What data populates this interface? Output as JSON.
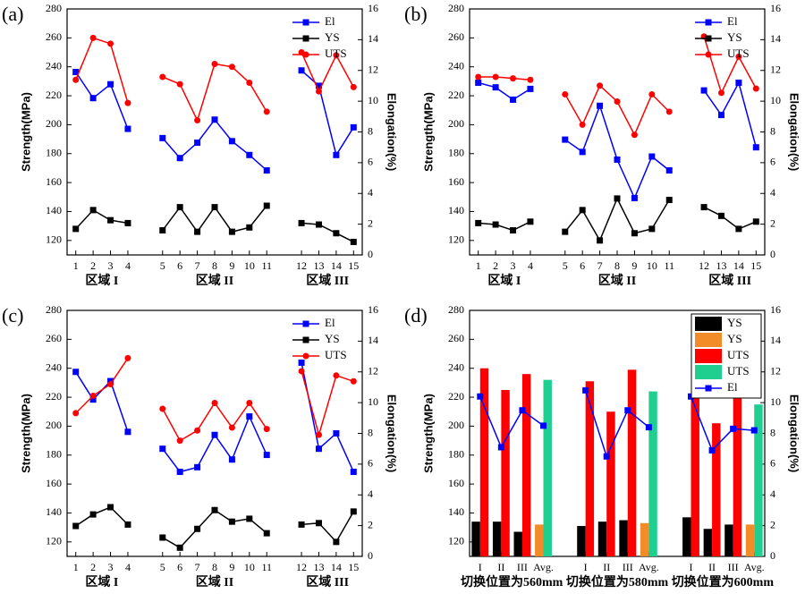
{
  "chart_data": [
    {
      "type": "line",
      "panel_label": "(a)",
      "ylabel": "Strength(MPa)",
      "y2label": "Elongation(%)",
      "categories": [
        "1",
        "2",
        "3",
        "4",
        null,
        "5",
        "6",
        "7",
        "8",
        "9",
        "10",
        "11",
        null,
        "12",
        "13",
        "14",
        "15"
      ],
      "group_labels": [
        "区域 I",
        "区域 II",
        "区域 III"
      ],
      "ylim": [
        110,
        280
      ],
      "yticks": [
        120,
        140,
        160,
        180,
        200,
        220,
        240,
        260,
        280
      ],
      "y2lim": [
        0,
        16
      ],
      "y2ticks": [
        0,
        2,
        4,
        6,
        8,
        10,
        12,
        14,
        16
      ],
      "legend": "upper right",
      "series": [
        {
          "name": "El",
          "color": "#0000ff",
          "marker": "square",
          "axis": "y2",
          "values": [
            11.9,
            10.2,
            11.1,
            8.2,
            null,
            7.6,
            6.3,
            7.3,
            8.8,
            7.4,
            6.5,
            5.5,
            null,
            12.0,
            11.0,
            6.5,
            8.3
          ]
        },
        {
          "name": "YS",
          "color": "#000000",
          "marker": "square",
          "values": [
            128,
            141,
            134,
            132,
            null,
            127,
            143,
            126,
            143,
            126,
            129,
            144,
            null,
            132,
            131,
            125,
            119
          ]
        },
        {
          "name": "UTS",
          "color": "#ff0000",
          "marker": "circle",
          "values": [
            231,
            260,
            256,
            215,
            null,
            233,
            228,
            203,
            242,
            240,
            229,
            209,
            null,
            250,
            223,
            248,
            226
          ]
        }
      ]
    },
    {
      "type": "line",
      "panel_label": "(b)",
      "ylabel": "Strength(MPa)",
      "y2label": "Elongation(%)",
      "categories": [
        "1",
        "2",
        "3",
        "4",
        null,
        "5",
        "6",
        "7",
        "8",
        "9",
        "10",
        "11",
        null,
        "12",
        "13",
        "14",
        "15"
      ],
      "group_labels": [
        "区域 I",
        "区域 II",
        "区域 III"
      ],
      "ylim": [
        110,
        280
      ],
      "yticks": [
        120,
        140,
        160,
        180,
        200,
        220,
        240,
        260,
        280
      ],
      "y2lim": [
        0,
        16
      ],
      "y2ticks": [
        0,
        2,
        4,
        6,
        8,
        10,
        12,
        14,
        16
      ],
      "legend": "upper right",
      "series": [
        {
          "name": "El",
          "color": "#0000ff",
          "marker": "square",
          "axis": "y2",
          "values": [
            11.2,
            10.9,
            10.1,
            10.8,
            null,
            7.5,
            6.7,
            9.7,
            6.2,
            3.7,
            6.4,
            5.5,
            null,
            10.7,
            9.1,
            11.2,
            7.0
          ]
        },
        {
          "name": "YS",
          "color": "#000000",
          "marker": "square",
          "values": [
            132,
            131,
            127,
            133,
            null,
            126,
            141,
            120,
            149,
            125,
            128,
            148,
            null,
            143,
            137,
            128,
            133
          ]
        },
        {
          "name": "UTS",
          "color": "#ff0000",
          "marker": "circle",
          "values": [
            233,
            233,
            232,
            231,
            null,
            221,
            200,
            227,
            216,
            193,
            221,
            209,
            null,
            261,
            222,
            247,
            225
          ]
        }
      ]
    },
    {
      "type": "line",
      "panel_label": "(c)",
      "ylabel": "Strength(MPa)",
      "y2label": "Elongation(%)",
      "categories": [
        "1",
        "2",
        "3",
        "4",
        null,
        "5",
        "6",
        "7",
        "8",
        "9",
        "10",
        "11",
        null,
        "12",
        "13",
        "14",
        "15"
      ],
      "group_labels": [
        "区域 I",
        "区域 II",
        "区域 III"
      ],
      "ylim": [
        110,
        280
      ],
      "yticks": [
        120,
        140,
        160,
        180,
        200,
        220,
        240,
        260,
        280
      ],
      "y2lim": [
        0,
        16
      ],
      "y2ticks": [
        0,
        2,
        4,
        6,
        8,
        10,
        12,
        14,
        16
      ],
      "legend": "upper right",
      "series": [
        {
          "name": "El",
          "color": "#0000ff",
          "marker": "square",
          "axis": "y2",
          "values": [
            12.0,
            10.2,
            11.4,
            8.1,
            null,
            7.0,
            5.5,
            5.8,
            7.9,
            6.3,
            9.1,
            6.6,
            null,
            12.6,
            7.0,
            8.0,
            5.5
          ]
        },
        {
          "name": "YS",
          "color": "#000000",
          "marker": "square",
          "values": [
            131,
            139,
            144,
            132,
            null,
            123,
            116,
            129,
            142,
            134,
            136,
            126,
            null,
            132,
            133,
            120,
            141
          ]
        },
        {
          "name": "UTS",
          "color": "#ff0000",
          "marker": "circle",
          "values": [
            209,
            221,
            229,
            247,
            null,
            212,
            190,
            197,
            216,
            199,
            216,
            198,
            null,
            238,
            194,
            235,
            231
          ]
        }
      ]
    },
    {
      "type": "bar",
      "panel_label": "(d)",
      "ylabel": "Strength(MPa)",
      "y2label": "Elongation(%)",
      "categories": [
        "I",
        "II",
        "III",
        "Avg.",
        null,
        "I",
        "II",
        "III",
        "Avg.",
        null,
        "I",
        "II",
        "III",
        "Avg."
      ],
      "group_labels": [
        "切换位置为560mm",
        "切换位置为580mm",
        "切换位置为600mm"
      ],
      "ylim": [
        110,
        280
      ],
      "yticks": [
        120,
        140,
        160,
        180,
        200,
        220,
        240,
        260,
        280
      ],
      "y2lim": [
        0,
        16
      ],
      "y2ticks": [
        0,
        2,
        4,
        6,
        8,
        10,
        12,
        14,
        16
      ],
      "legend": "upper right",
      "series": [
        {
          "name": "YS",
          "color": "#000000",
          "values": [
            134,
            134,
            127,
            null,
            null,
            131,
            134,
            135,
            null,
            null,
            137,
            129,
            132,
            null
          ]
        },
        {
          "name": "YS",
          "color": "#f28c28",
          "values": [
            null,
            null,
            null,
            132,
            null,
            null,
            null,
            null,
            133,
            null,
            null,
            null,
            null,
            132
          ]
        },
        {
          "name": "UTS",
          "color": "#ff0000",
          "values": [
            240,
            225,
            236,
            null,
            null,
            231,
            210,
            239,
            null,
            null,
            226,
            202,
            227,
            null
          ]
        },
        {
          "name": "UTS",
          "color": "#1fcf8f",
          "values": [
            null,
            null,
            null,
            232,
            null,
            null,
            null,
            null,
            224,
            null,
            null,
            null,
            null,
            215
          ]
        },
        {
          "name": "El",
          "color": "#0000ff",
          "type": "line",
          "marker": "square",
          "axis": "y2",
          "values": [
            10.4,
            7.1,
            9.5,
            8.5,
            null,
            10.8,
            6.5,
            9.5,
            8.4,
            null,
            10.4,
            6.9,
            8.3,
            8.2
          ]
        }
      ]
    }
  ]
}
